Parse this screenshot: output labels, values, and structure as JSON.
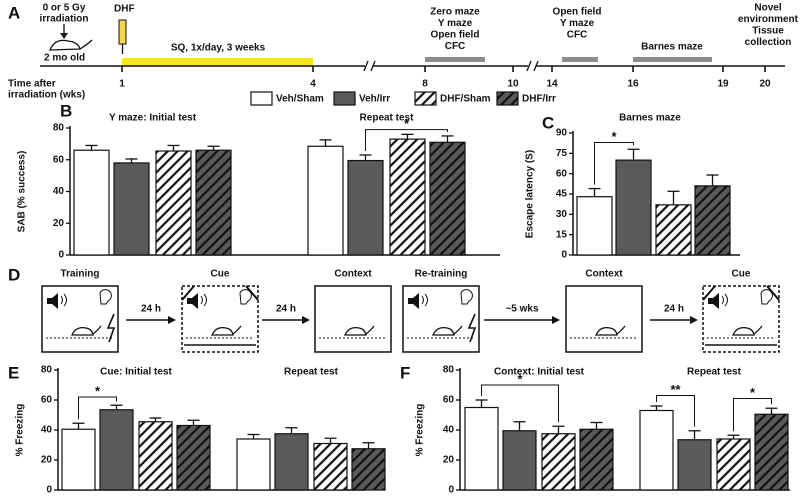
{
  "timeline": {
    "panel_label": "A",
    "dose": [
      "0 or 5 Gy",
      "irradiation"
    ],
    "age": "2 mo old",
    "drug": "DHF",
    "treatment": "SQ, 1x/day, 3 weeks",
    "axis_label": [
      "Time after",
      "irradiation (wks)"
    ],
    "ticks": [
      1,
      4,
      8,
      10,
      14,
      16,
      19,
      20
    ],
    "blocks": [
      [
        "Zero maze",
        "Y maze",
        "Open field",
        "CFC"
      ],
      [
        "Open field",
        "Y maze",
        "CFC"
      ],
      [
        "Barnes maze"
      ]
    ],
    "end": [
      "Novel",
      "environment",
      "Tissue",
      "collection"
    ]
  },
  "protocol": {
    "panel_label": "D",
    "steps": [
      "Training",
      "Cue",
      "Context",
      "Re-training",
      "Context",
      "Cue"
    ],
    "intervals": [
      "24 h",
      "24 h",
      "~5 wks",
      "24 h"
    ]
  },
  "chart_data": [
    {
      "type": "bar",
      "panel_label": "B",
      "categories": [
        "Y maze: Initial test",
        "Repeat test"
      ],
      "ylabel": "SAB (% success)",
      "ylim": [
        0,
        80
      ],
      "yticks": [
        0,
        20,
        40,
        60,
        80
      ],
      "series": [
        {
          "name": "Veh/Sham",
          "color": "#ffffff",
          "values": [
            66,
            68.5
          ],
          "errors": [
            3,
            4
          ]
        },
        {
          "name": "Veh/Irr",
          "color": "#5a5a5a",
          "values": [
            58,
            59.5
          ],
          "errors": [
            2.5,
            3.5
          ]
        },
        {
          "name": "DHF/Sham",
          "color": "#ffffff",
          "pattern": "hatch",
          "values": [
            65.5,
            73
          ],
          "errors": [
            3.5,
            3
          ]
        },
        {
          "name": "DHF/Irr",
          "color": "#5a5a5a",
          "pattern": "hatch",
          "values": [
            66,
            71
          ],
          "errors": [
            2.5,
            4
          ]
        }
      ],
      "annotations": [
        "*"
      ]
    },
    {
      "type": "bar",
      "panel_label": "C",
      "title": "Barnes maze",
      "categories": [
        null
      ],
      "ylabel": "Escape latency (S)",
      "ylim": [
        0,
        90
      ],
      "yticks": [
        0,
        15,
        30,
        45,
        60,
        75,
        90
      ],
      "series": [
        {
          "values": [
            43
          ],
          "errors": [
            6
          ]
        },
        {
          "values": [
            70
          ],
          "errors": [
            8
          ]
        },
        {
          "values": [
            37
          ],
          "errors": [
            10
          ]
        },
        {
          "values": [
            51
          ],
          "errors": [
            8
          ]
        }
      ],
      "annotations": [
        "*"
      ]
    },
    {
      "type": "bar",
      "panel_label": "E",
      "categories": [
        "Cue: Initial test",
        "Repeat test"
      ],
      "ylabel": "% Freezing",
      "ylim": [
        0,
        80
      ],
      "yticks": [
        0,
        20,
        40,
        60,
        80
      ],
      "series": [
        {
          "values": [
            40.5,
            34
          ],
          "errors": [
            4,
            3
          ]
        },
        {
          "values": [
            53.5,
            37.5
          ],
          "errors": [
            3,
            4
          ]
        },
        {
          "values": [
            45.5,
            31
          ],
          "errors": [
            2.5,
            3.5
          ]
        },
        {
          "values": [
            43,
            27.5
          ],
          "errors": [
            3.5,
            4
          ]
        }
      ],
      "annotations": [
        "*"
      ]
    },
    {
      "type": "bar",
      "panel_label": "F",
      "categories": [
        "Context: Initial test",
        "Repeat test"
      ],
      "ylabel": "% Freezing",
      "ylim": [
        0,
        80
      ],
      "yticks": [
        0,
        20,
        40,
        60,
        80
      ],
      "series": [
        {
          "values": [
            55,
            53
          ],
          "errors": [
            5,
            3
          ]
        },
        {
          "values": [
            39.5,
            33.5
          ],
          "errors": [
            6,
            6
          ]
        },
        {
          "values": [
            37.5,
            34
          ],
          "errors": [
            5,
            2.5
          ]
        },
        {
          "values": [
            40.5,
            50.5
          ],
          "errors": [
            4.5,
            4
          ]
        }
      ],
      "annotations": [
        "*",
        "**",
        "*"
      ]
    }
  ]
}
